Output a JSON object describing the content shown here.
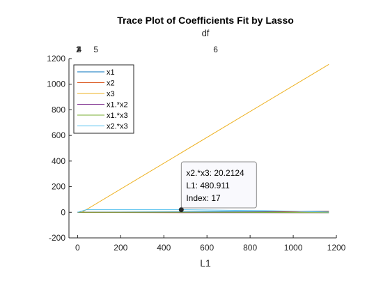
{
  "colors": {
    "x1": "#0072BD",
    "x2": "#D95319",
    "x3": "#EDB120",
    "x1x2": "#7E2F8E",
    "x1x3": "#77AC30",
    "x2x3": "#4DBEEE"
  },
  "chart_data": {
    "type": "line",
    "title": "Trace Plot of Coefficients Fit by Lasso",
    "xlabel": "L1",
    "ylabel": "",
    "xlim": [
      -40,
      1200
    ],
    "ylim": [
      -200,
      1200
    ],
    "xticks": [
      0,
      200,
      400,
      600,
      800,
      1000,
      1200
    ],
    "yticks": [
      -200,
      0,
      200,
      400,
      600,
      800,
      1000,
      1200
    ],
    "top_axis": {
      "label": "df",
      "ticks": [
        {
          "x": 2,
          "label": "1"
        },
        {
          "x": 4,
          "label": "2"
        },
        {
          "x": 6,
          "label": "3"
        },
        {
          "x": 8,
          "label": "4"
        },
        {
          "x": 85,
          "label": "5"
        },
        {
          "x": 640,
          "label": "6"
        }
      ]
    },
    "legend_position": "top-left",
    "series": [
      {
        "name": "x1",
        "color_key": "x1",
        "x": [
          0,
          20,
          480,
          900,
          1165
        ],
        "y": [
          0,
          1,
          3,
          6,
          8
        ]
      },
      {
        "name": "x2",
        "color_key": "x2",
        "x": [
          0,
          20,
          480,
          900,
          1165
        ],
        "y": [
          0,
          -1,
          -2,
          2,
          7
        ]
      },
      {
        "name": "x3",
        "color_key": "x3",
        "x": [
          0,
          20,
          1165
        ],
        "y": [
          0,
          0,
          1155
        ]
      },
      {
        "name": "x1.*x2",
        "color_key": "x1x2",
        "x": [
          0,
          85,
          480,
          1165
        ],
        "y": [
          0,
          0,
          -2,
          -4
        ]
      },
      {
        "name": "x1.*x3",
        "color_key": "x1x3",
        "x": [
          0,
          640,
          1165
        ],
        "y": [
          0,
          0,
          -3
        ]
      },
      {
        "name": "x2.*x3",
        "color_key": "x2x3",
        "x": [
          0,
          40,
          480,
          900,
          1165
        ],
        "y": [
          0,
          20,
          20.2124,
          12,
          2
        ]
      }
    ],
    "datatip": {
      "x": 480.911,
      "y": 20.2124,
      "lines": [
        "x2.*x3: 20.2124",
        "L1: 480.911",
        "Index: 17"
      ]
    }
  }
}
